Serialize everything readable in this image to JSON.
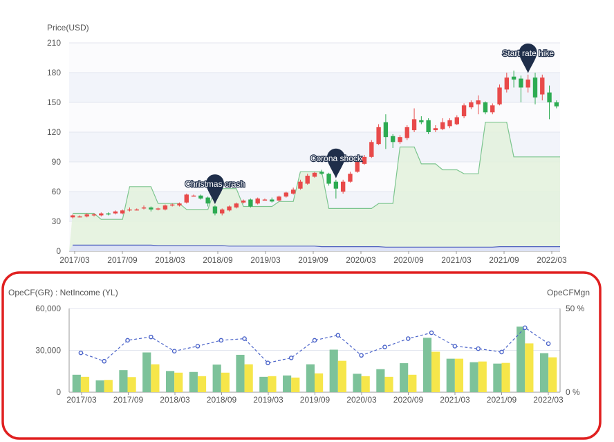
{
  "chart_data": [
    {
      "type": "candlestick",
      "ylabel": "Price(USD)",
      "ylim": [
        0,
        210
      ],
      "yticks": [
        "210",
        "180",
        "150",
        "120",
        "90",
        "60",
        "30",
        "0"
      ],
      "xtick_labels": [
        "2017/03",
        "2017/09",
        "2018/03",
        "2018/09",
        "2019/03",
        "2019/09",
        "2020/03",
        "2020/09",
        "2021/03",
        "2021/09",
        "2022/03"
      ],
      "grid": true,
      "candles": [
        {
          "o": 34,
          "c": 36,
          "h": 37,
          "l": 33
        },
        {
          "o": 35,
          "c": 35,
          "h": 36,
          "l": 34
        },
        {
          "o": 35,
          "c": 37,
          "h": 38,
          "l": 34
        },
        {
          "o": 36,
          "c": 37,
          "h": 38,
          "l": 35
        },
        {
          "o": 36,
          "c": 38,
          "h": 39,
          "l": 35
        },
        {
          "o": 38,
          "c": 37,
          "h": 39,
          "l": 36
        },
        {
          "o": 38,
          "c": 40,
          "h": 41,
          "l": 37
        },
        {
          "o": 38,
          "c": 41,
          "h": 42,
          "l": 37
        },
        {
          "o": 42,
          "c": 42,
          "h": 44,
          "l": 40
        },
        {
          "o": 42,
          "c": 42,
          "h": 43,
          "l": 41
        },
        {
          "o": 43,
          "c": 44,
          "h": 46,
          "l": 42
        },
        {
          "o": 44,
          "c": 42,
          "h": 45,
          "l": 40
        },
        {
          "o": 43,
          "c": 43,
          "h": 44,
          "l": 41
        },
        {
          "o": 42,
          "c": 46,
          "h": 47,
          "l": 41
        },
        {
          "o": 46,
          "c": 47,
          "h": 48,
          "l": 45
        },
        {
          "o": 46,
          "c": 48,
          "h": 49,
          "l": 45
        },
        {
          "o": 49,
          "c": 57,
          "h": 58,
          "l": 48
        },
        {
          "o": 56,
          "c": 56,
          "h": 57,
          "l": 55
        },
        {
          "o": 56,
          "c": 53,
          "h": 57,
          "l": 52
        },
        {
          "o": 54,
          "c": 48,
          "h": 55,
          "l": 45
        },
        {
          "o": 45,
          "c": 38,
          "h": 46,
          "l": 36
        },
        {
          "o": 38,
          "c": 42,
          "h": 43,
          "l": 36
        },
        {
          "o": 41,
          "c": 45,
          "h": 46,
          "l": 40
        },
        {
          "o": 44,
          "c": 48,
          "h": 49,
          "l": 43
        },
        {
          "o": 49,
          "c": 51,
          "h": 52,
          "l": 48
        },
        {
          "o": 52,
          "c": 45,
          "h": 53,
          "l": 44
        },
        {
          "o": 48,
          "c": 53,
          "h": 54,
          "l": 47
        },
        {
          "o": 52,
          "c": 52,
          "h": 53,
          "l": 51
        },
        {
          "o": 52,
          "c": 50,
          "h": 54,
          "l": 49
        },
        {
          "o": 51,
          "c": 55,
          "h": 56,
          "l": 50
        },
        {
          "o": 55,
          "c": 59,
          "h": 60,
          "l": 54
        },
        {
          "o": 58,
          "c": 62,
          "h": 64,
          "l": 57
        },
        {
          "o": 63,
          "c": 70,
          "h": 72,
          "l": 62
        },
        {
          "o": 68,
          "c": 76,
          "h": 78,
          "l": 67
        },
        {
          "o": 75,
          "c": 79,
          "h": 80,
          "l": 74
        },
        {
          "o": 80,
          "c": 78,
          "h": 82,
          "l": 77
        },
        {
          "o": 78,
          "c": 68,
          "h": 79,
          "l": 66
        },
        {
          "o": 70,
          "c": 63,
          "h": 72,
          "l": 53
        },
        {
          "o": 60,
          "c": 70,
          "h": 72,
          "l": 58
        },
        {
          "o": 70,
          "c": 78,
          "h": 80,
          "l": 69
        },
        {
          "o": 80,
          "c": 90,
          "h": 92,
          "l": 79
        },
        {
          "o": 88,
          "c": 95,
          "h": 97,
          "l": 87
        },
        {
          "o": 95,
          "c": 110,
          "h": 112,
          "l": 94
        },
        {
          "o": 108,
          "c": 125,
          "h": 128,
          "l": 107
        },
        {
          "o": 130,
          "c": 115,
          "h": 138,
          "l": 103
        },
        {
          "o": 116,
          "c": 110,
          "h": 118,
          "l": 104
        },
        {
          "o": 110,
          "c": 115,
          "h": 117,
          "l": 108
        },
        {
          "o": 114,
          "c": 125,
          "h": 127,
          "l": 112
        },
        {
          "o": 122,
          "c": 133,
          "h": 144,
          "l": 120
        },
        {
          "o": 132,
          "c": 130,
          "h": 136,
          "l": 128
        },
        {
          "o": 132,
          "c": 120,
          "h": 134,
          "l": 118
        },
        {
          "o": 122,
          "c": 124,
          "h": 127,
          "l": 120
        },
        {
          "o": 123,
          "c": 130,
          "h": 134,
          "l": 122
        },
        {
          "o": 126,
          "c": 132,
          "h": 134,
          "l": 124
        },
        {
          "o": 128,
          "c": 135,
          "h": 137,
          "l": 127
        },
        {
          "o": 136,
          "c": 147,
          "h": 149,
          "l": 134
        },
        {
          "o": 145,
          "c": 150,
          "h": 152,
          "l": 143
        },
        {
          "o": 148,
          "c": 152,
          "h": 157,
          "l": 138
        },
        {
          "o": 150,
          "c": 140,
          "h": 151,
          "l": 138
        },
        {
          "o": 140,
          "c": 147,
          "h": 149,
          "l": 138
        },
        {
          "o": 148,
          "c": 165,
          "h": 168,
          "l": 147
        },
        {
          "o": 163,
          "c": 175,
          "h": 180,
          "l": 160
        },
        {
          "o": 176,
          "c": 173,
          "h": 182,
          "l": 165
        },
        {
          "o": 174,
          "c": 165,
          "h": 177,
          "l": 150
        },
        {
          "o": 165,
          "c": 173,
          "h": 178,
          "l": 160
        },
        {
          "o": 175,
          "c": 155,
          "h": 180,
          "l": 148
        },
        {
          "o": 158,
          "c": 175,
          "h": 178,
          "l": 152
        },
        {
          "o": 160,
          "c": 150,
          "h": 167,
          "l": 133
        },
        {
          "o": 150,
          "c": 146,
          "h": 152,
          "l": 144
        }
      ],
      "valuation_band": [
        38,
        38,
        38,
        38,
        32,
        32,
        32,
        32,
        65,
        65,
        65,
        65,
        48,
        48,
        48,
        48,
        42,
        42,
        42,
        42,
        63,
        63,
        63,
        63,
        45,
        45,
        45,
        45,
        45,
        50,
        50,
        50,
        80,
        80,
        80,
        80,
        43,
        43,
        43,
        43,
        43,
        43,
        43,
        48,
        48,
        48,
        105,
        105,
        105,
        88,
        88,
        88,
        82,
        82,
        82,
        78,
        78,
        78,
        130,
        130,
        130,
        130,
        95,
        95,
        95,
        95,
        95,
        95,
        95
      ],
      "bottom_band": [
        6,
        6,
        6,
        6,
        6,
        6,
        6,
        6,
        6,
        6,
        6,
        6,
        5.5,
        5.5,
        5.5,
        5.5,
        5.5,
        5.5,
        5.5,
        5.5,
        5.5,
        5.5,
        5,
        5,
        5,
        5,
        5,
        5,
        5,
        5,
        5,
        5,
        5,
        5,
        5,
        4.5,
        4.5,
        4.5,
        4.5,
        4.5,
        4.5,
        4.5,
        4.5,
        4.5,
        4,
        4,
        4,
        4,
        4,
        4,
        4,
        4,
        4,
        4,
        4,
        4,
        4,
        4,
        4,
        4,
        4.5,
        4.5,
        4.5,
        4.5,
        4.5,
        4.5,
        4.5,
        4.5,
        4.5
      ],
      "annotations": [
        {
          "label": "Christmas crash",
          "candle": 20
        },
        {
          "label": "Corona shock",
          "candle": 37
        },
        {
          "label": "Start rate hike",
          "candle": 64
        }
      ],
      "colors": {
        "up": "#e84a4a",
        "down": "#2dab52",
        "band_fill": "#e3f1dc",
        "band_line": "#7cc58e",
        "bottom_fill": "#dde2f5",
        "bottom_line": "#4e5fbf",
        "pin": "#1f2e4a"
      }
    },
    {
      "type": "bar",
      "ylabel_left": "OpeCF(GR) : NetIncome  (YL)",
      "ylabel_right": "OpeCFMgn",
      "ylim_left": [
        0,
        60000
      ],
      "ylim_right": [
        0,
        50
      ],
      "yticks_left": [
        "60,000",
        "30,000",
        "0"
      ],
      "yticks_right": [
        "50 %",
        "0 %"
      ],
      "xtick_labels": [
        "2017/03",
        "2017/09",
        "2018/03",
        "2018/09",
        "2019/03",
        "2019/09",
        "2020/03",
        "2020/09",
        "2021/03",
        "2021/09",
        "2022/03"
      ],
      "series": [
        {
          "values": [
            12500,
            8500,
            15800,
            28500,
            15200,
            14500,
            19800,
            26800,
            11000,
            12000,
            20000,
            30500,
            13200,
            16500,
            20800,
            39000,
            24000,
            21500,
            20500,
            47000,
            28000
          ],
          "color": "#7dc29a"
        },
        {
          "values": [
            11000,
            8800,
            10800,
            20000,
            14000,
            11500,
            14000,
            20000,
            11500,
            10500,
            13500,
            22500,
            11500,
            11000,
            12500,
            29000,
            24000,
            22000,
            21000,
            35000,
            25000
          ],
          "color": "#f6e64a"
        },
        {
          "values": [
            23.5,
            18.5,
            31,
            33,
            24.5,
            27.5,
            31,
            32,
            17.5,
            20.5,
            31,
            34,
            22,
            27,
            32,
            35.5,
            27.5,
            26,
            24,
            38.5,
            29
          ],
          "color": "#4a63c9"
        }
      ],
      "highlight_color": "#e02020"
    }
  ]
}
